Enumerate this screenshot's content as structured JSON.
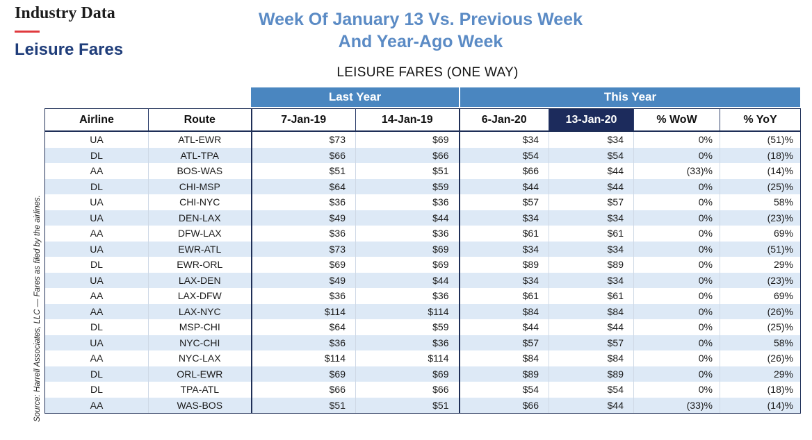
{
  "brand": "Industry Data",
  "section": "Leisure Fares",
  "headline_line1": "Week Of January 13 Vs. Previous Week",
  "headline_line2": "And Year-Ago Week",
  "table_title": "LEISURE FARES (ONE WAY)",
  "source": "Source: Harrell Associates, LLC — Fares as filed by the airlines.",
  "groups": {
    "last_year": "Last Year",
    "this_year": "This Year"
  },
  "columns": [
    "Airline",
    "Route",
    "7-Jan-19",
    "14-Jan-19",
    "6-Jan-20",
    "13-Jan-20",
    "% WoW",
    "% YoY"
  ],
  "rows": [
    [
      "UA",
      "ATL-EWR",
      "$73",
      "$69",
      "$34",
      "$34",
      "0%",
      "(51)%"
    ],
    [
      "DL",
      "ATL-TPA",
      "$66",
      "$66",
      "$54",
      "$54",
      "0%",
      "(18)%"
    ],
    [
      "AA",
      "BOS-WAS",
      "$51",
      "$51",
      "$66",
      "$44",
      "(33)%",
      "(14)%"
    ],
    [
      "DL",
      "CHI-MSP",
      "$64",
      "$59",
      "$44",
      "$44",
      "0%",
      "(25)%"
    ],
    [
      "UA",
      "CHI-NYC",
      "$36",
      "$36",
      "$57",
      "$57",
      "0%",
      "58%"
    ],
    [
      "UA",
      "DEN-LAX",
      "$49",
      "$44",
      "$34",
      "$34",
      "0%",
      "(23)%"
    ],
    [
      "AA",
      "DFW-LAX",
      "$36",
      "$36",
      "$61",
      "$61",
      "0%",
      "69%"
    ],
    [
      "UA",
      "EWR-ATL",
      "$73",
      "$69",
      "$34",
      "$34",
      "0%",
      "(51)%"
    ],
    [
      "DL",
      "EWR-ORL",
      "$69",
      "$69",
      "$89",
      "$89",
      "0%",
      "29%"
    ],
    [
      "UA",
      "LAX-DEN",
      "$49",
      "$44",
      "$34",
      "$34",
      "0%",
      "(23)%"
    ],
    [
      "AA",
      "LAX-DFW",
      "$36",
      "$36",
      "$61",
      "$61",
      "0%",
      "69%"
    ],
    [
      "AA",
      "LAX-NYC",
      "$114",
      "$114",
      "$84",
      "$84",
      "0%",
      "(26)%"
    ],
    [
      "DL",
      "MSP-CHI",
      "$64",
      "$59",
      "$44",
      "$44",
      "0%",
      "(25)%"
    ],
    [
      "UA",
      "NYC-CHI",
      "$36",
      "$36",
      "$57",
      "$57",
      "0%",
      "58%"
    ],
    [
      "AA",
      "NYC-LAX",
      "$114",
      "$114",
      "$84",
      "$84",
      "0%",
      "(26)%"
    ],
    [
      "DL",
      "ORL-EWR",
      "$69",
      "$69",
      "$89",
      "$89",
      "0%",
      "29%"
    ],
    [
      "DL",
      "TPA-ATL",
      "$66",
      "$66",
      "$54",
      "$54",
      "0%",
      "(18)%"
    ],
    [
      "AA",
      "WAS-BOS",
      "$51",
      "$51",
      "$66",
      "$44",
      "(33)%",
      "(14)%"
    ]
  ]
}
